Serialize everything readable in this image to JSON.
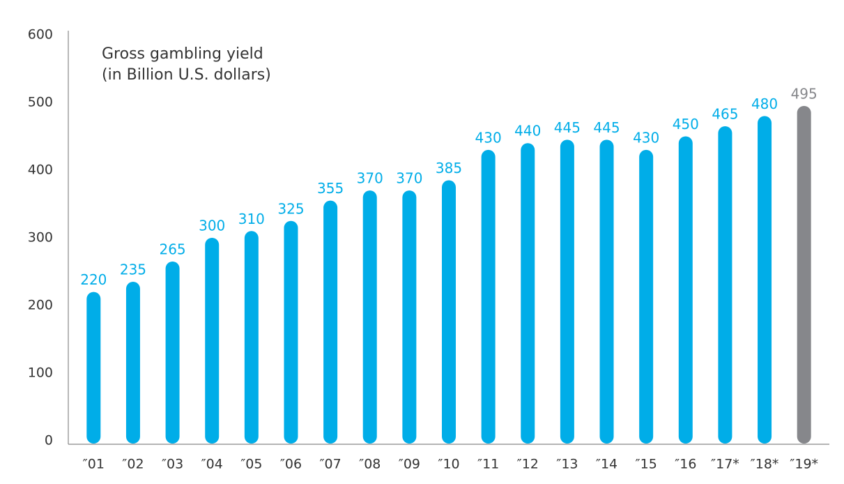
{
  "chart_data": {
    "type": "bar",
    "title": "Gross gambling yield",
    "subtitle": "(in Billion U.S. dollars)",
    "categories": [
      "″01",
      "″02",
      "″03",
      "″04",
      "″05",
      "″06",
      "″07",
      "″08",
      "″09",
      "″10",
      "″11",
      "″12",
      "″13",
      "″14",
      "″15",
      "″16",
      "″17*",
      "″18*",
      "″19*"
    ],
    "values": [
      220,
      235,
      265,
      300,
      310,
      325,
      355,
      370,
      370,
      385,
      430,
      440,
      445,
      445,
      430,
      450,
      465,
      480,
      495
    ],
    "colors": [
      "#00ade8",
      "#00ade8",
      "#00ade8",
      "#00ade8",
      "#00ade8",
      "#00ade8",
      "#00ade8",
      "#00ade8",
      "#00ade8",
      "#00ade8",
      "#00ade8",
      "#00ade8",
      "#00ade8",
      "#00ade8",
      "#00ade8",
      "#00ade8",
      "#00ade8",
      "#00ade8",
      "#86878b"
    ],
    "ylim": [
      0,
      600
    ],
    "yticks": [
      0,
      100,
      200,
      300,
      400,
      500,
      600
    ],
    "grid": false
  }
}
